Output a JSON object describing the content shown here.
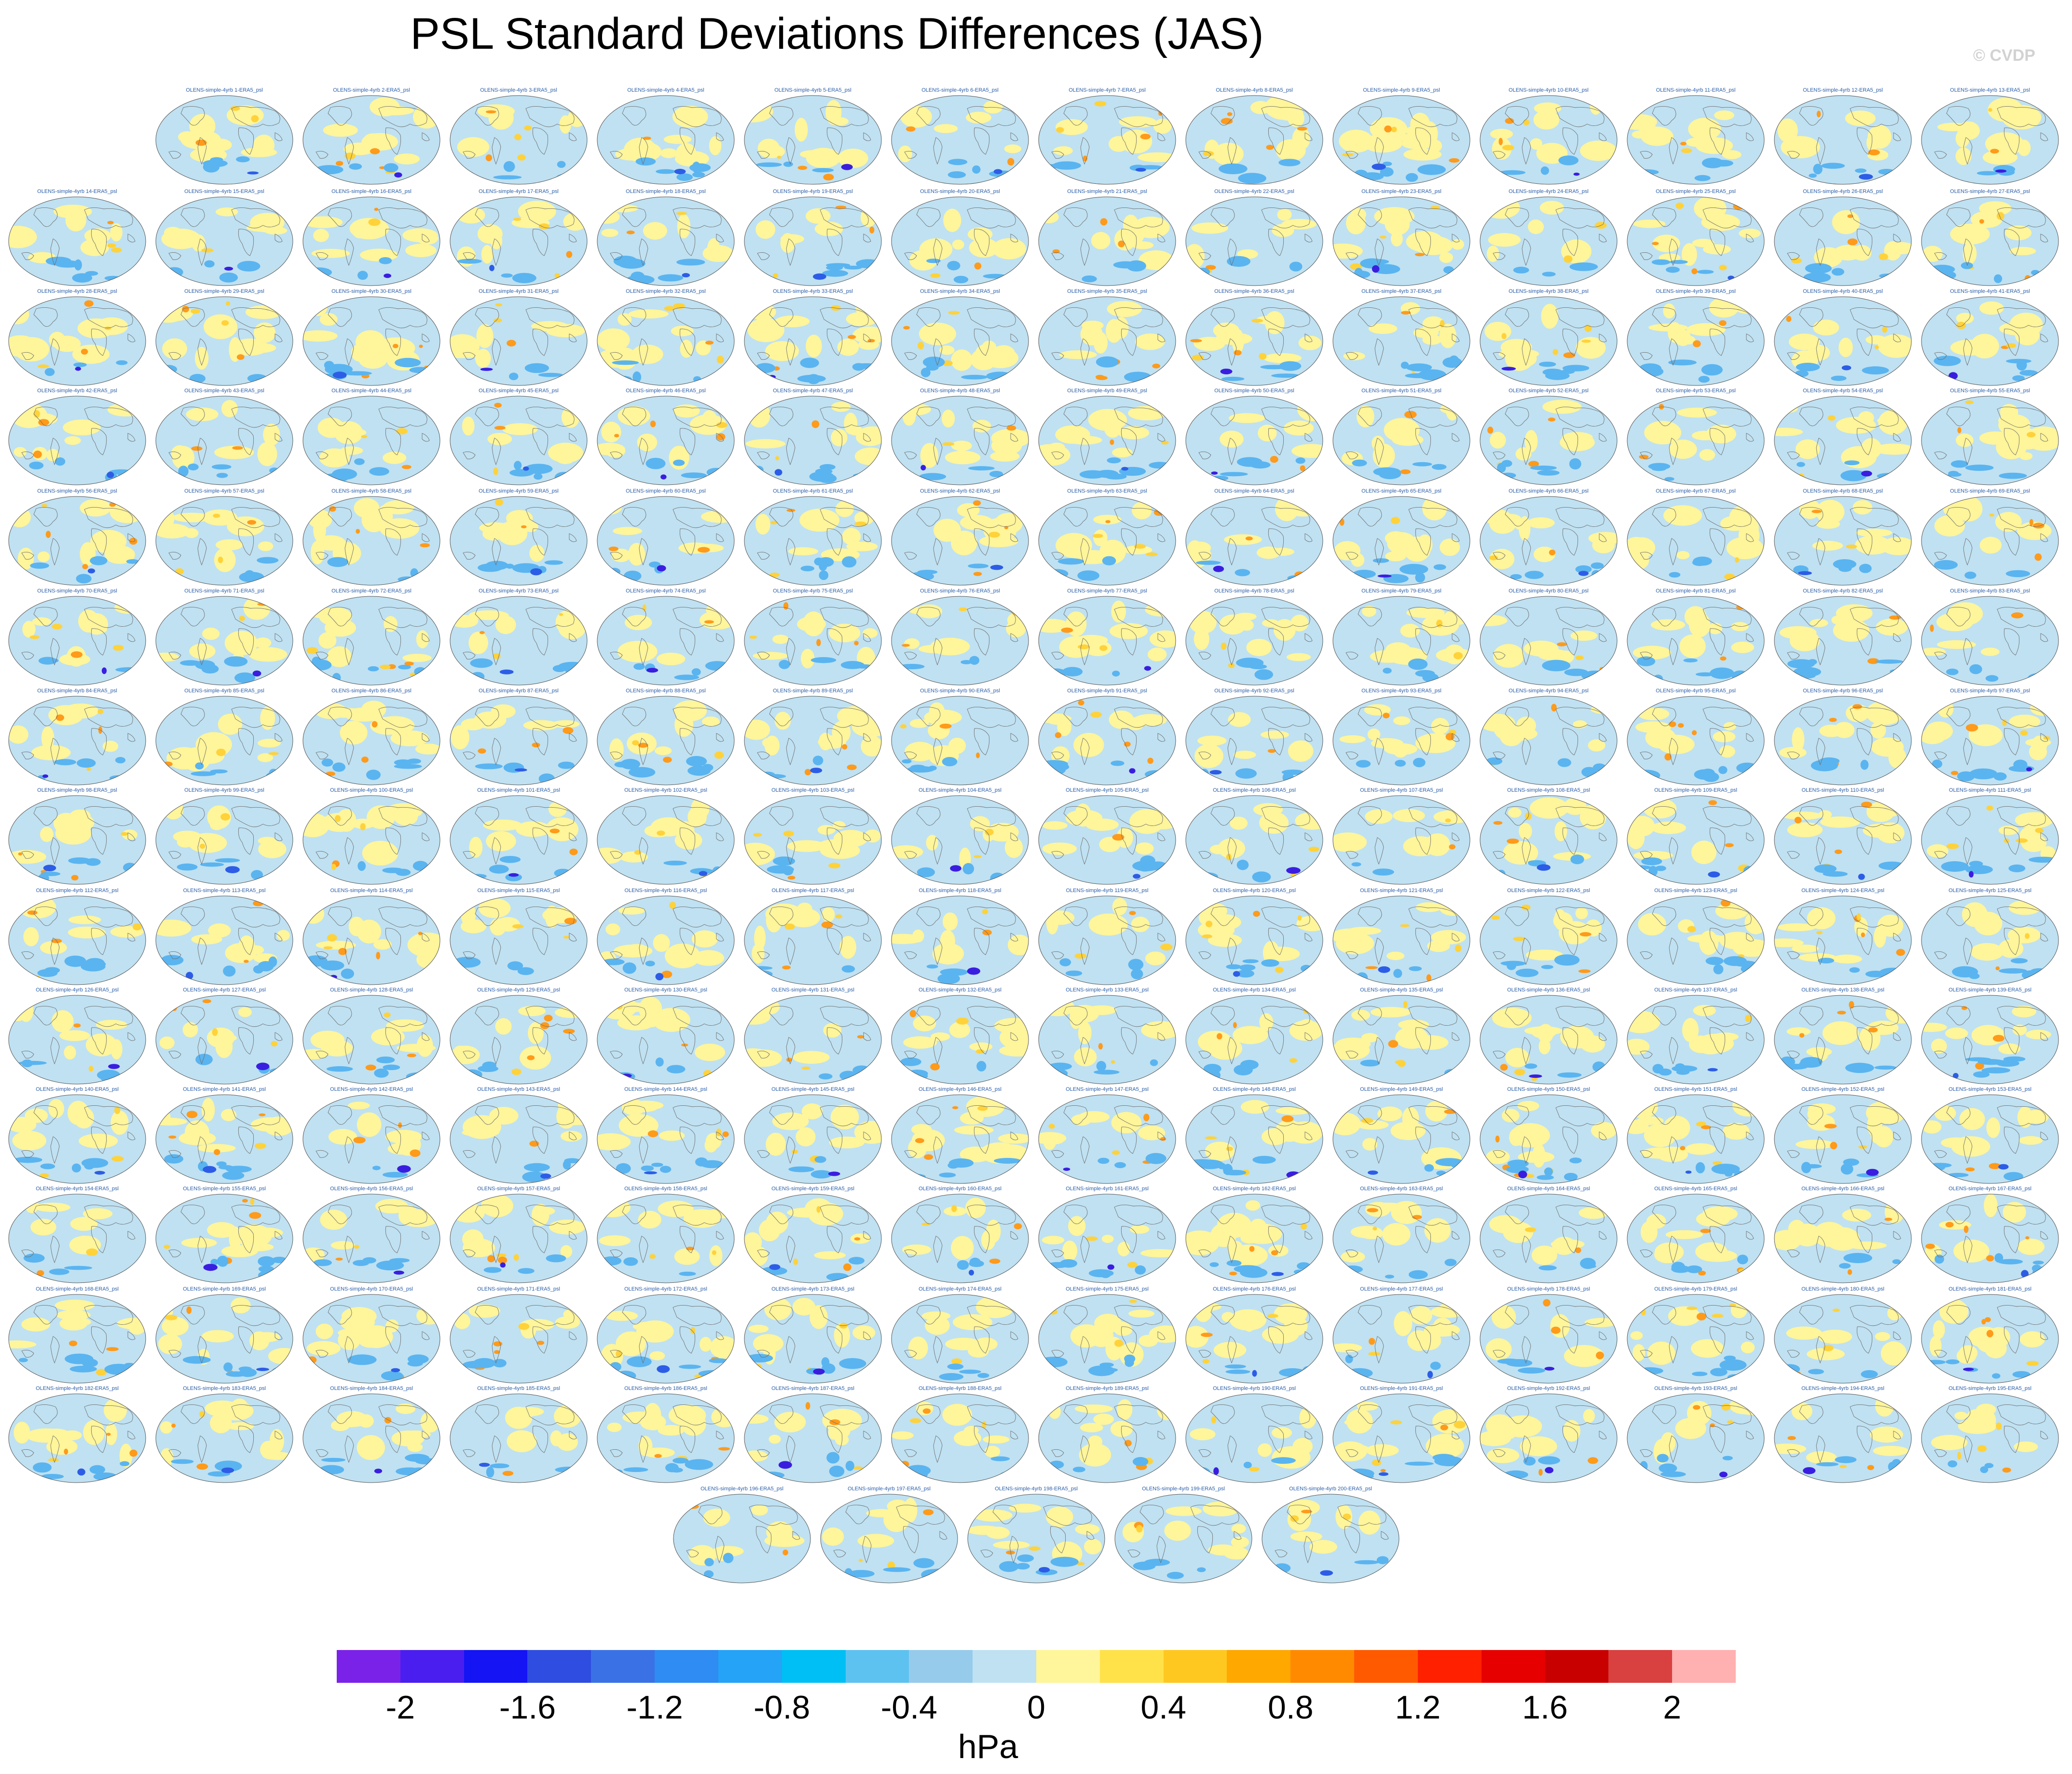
{
  "title": "PSL Standard Deviations Differences (JAS)",
  "watermark": "© CVDP",
  "panel_label_prefix": "OLENS-simple-4yrb ",
  "panel_label_suffix": "-ERA5_psl",
  "panel_count": 200,
  "units": "hPa",
  "colorbar": {
    "colors": [
      "#7b22e8",
      "#4b1ef0",
      "#1414f5",
      "#2f4de0",
      "#3a72e6",
      "#2e8cf2",
      "#24a3f7",
      "#00bff5",
      "#5ec2f0",
      "#96cbeb",
      "#bfe1f2",
      "#fff59a",
      "#ffe14a",
      "#ffc820",
      "#ffa800",
      "#ff8a00",
      "#ff5a00",
      "#ff2000",
      "#e60000",
      "#c80000",
      "#d94040",
      "#ffb0b0"
    ],
    "tick_labels": [
      "-2",
      "-1.6",
      "-1.2",
      "-0.8",
      "-0.4",
      "0",
      "0.4",
      "0.8",
      "1.2",
      "1.6",
      "2"
    ],
    "tick_values": [
      -2,
      -1.6,
      -1.2,
      -0.8,
      -0.4,
      0,
      0.4,
      0.8,
      1.2,
      1.6,
      2
    ],
    "min": -2.2,
    "max": 2.2
  },
  "map_colors": {
    "ocean": "#bfe1f2",
    "positive_light": "#fff59a",
    "positive_mid": "#ffd23a",
    "positive_strong": "#ff9a1a",
    "negative_mid": "#5ab4f0",
    "negative_strong": "#2d5de6",
    "negative_extreme": "#3a1ee0",
    "coast": "#6e6e6e"
  }
}
